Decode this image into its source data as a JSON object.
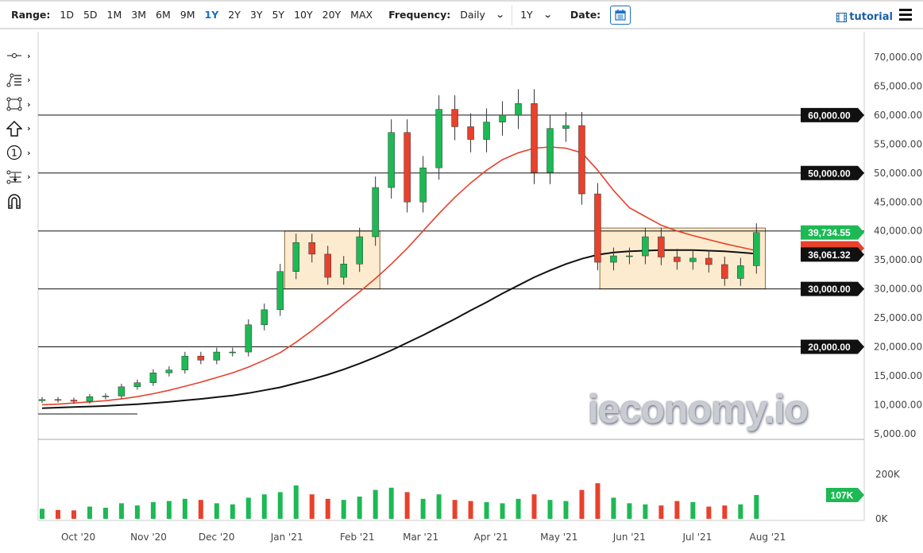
{
  "toolbar": {
    "range_label": "Range:",
    "ranges": [
      "1D",
      "5D",
      "1M",
      "3M",
      "6M",
      "9M",
      "1Y",
      "2Y",
      "3Y",
      "5Y",
      "10Y",
      "20Y",
      "MAX"
    ],
    "active_range": "1Y",
    "frequency_label": "Frequency:",
    "frequency_value": "Daily",
    "period_value": "1Y",
    "date_label": "Date:",
    "tutorial_label": "tutorial"
  },
  "tools": [
    "line-tool-icon",
    "fibonacci-tool-icon",
    "rectangle-tool-icon",
    "arrow-up-tool-icon",
    "numbered-marker-icon",
    "measure-tool-icon",
    "magnet-icon"
  ],
  "watermark": "ieconomy.io",
  "chart_data": {
    "type": "candlestick",
    "frequency": "Daily (approximated weekly)",
    "x": [
      "2020-09-14",
      "2020-09-21",
      "2020-09-28",
      "2020-10-05",
      "2020-10-12",
      "2020-10-19",
      "2020-10-26",
      "2020-11-02",
      "2020-11-09",
      "2020-11-16",
      "2020-11-23",
      "2020-11-30",
      "2020-12-07",
      "2020-12-14",
      "2020-12-21",
      "2020-12-28",
      "2021-01-04",
      "2021-01-11",
      "2021-01-18",
      "2021-01-25",
      "2021-02-01",
      "2021-02-08",
      "2021-02-15",
      "2021-02-22",
      "2021-03-01",
      "2021-03-08",
      "2021-03-15",
      "2021-03-22",
      "2021-03-29",
      "2021-04-05",
      "2021-04-12",
      "2021-04-19",
      "2021-04-26",
      "2021-05-03",
      "2021-05-10",
      "2021-05-17",
      "2021-05-24",
      "2021-05-31",
      "2021-06-07",
      "2021-06-14",
      "2021-06-21",
      "2021-06-28",
      "2021-07-05",
      "2021-07-12",
      "2021-07-19",
      "2021-07-26"
    ],
    "close": [
      10900,
      10800,
      10600,
      11400,
      11500,
      13100,
      13800,
      15500,
      16000,
      18400,
      17700,
      19100,
      19100,
      23800,
      26400,
      33000,
      38000,
      36000,
      32000,
      34300,
      39000,
      47500,
      57000,
      45000,
      50900,
      61000,
      58000,
      55800,
      58800,
      60000,
      62000,
      50100,
      57700,
      58200,
      46400,
      34600,
      35700,
      35700,
      39000,
      35500,
      34700,
      35300,
      34200,
      31800,
      34000,
      39734.55
    ],
    "start_open": 10700,
    "ma50": [
      10000,
      10100,
      10300,
      10500,
      10700,
      11000,
      11400,
      11900,
      12500,
      13200,
      13900,
      14700,
      15500,
      16500,
      17700,
      19000,
      20800,
      22800,
      25000,
      27300,
      29500,
      31800,
      34300,
      37000,
      40000,
      43000,
      45800,
      48300,
      50500,
      52300,
      53500,
      54300,
      54500,
      54300,
      53500,
      50500,
      47000,
      44000,
      42500,
      41000,
      40000,
      39200,
      38500,
      37800,
      37200,
      36600
    ],
    "ma200": [
      9400,
      9500,
      9600,
      9700,
      9800,
      9950,
      10100,
      10300,
      10500,
      10750,
      11000,
      11300,
      11600,
      12000,
      12500,
      13000,
      13700,
      14400,
      15200,
      16100,
      17100,
      18200,
      19400,
      20700,
      22000,
      23400,
      24800,
      26300,
      27700,
      29200,
      30600,
      32000,
      33200,
      34300,
      35200,
      35900,
      36300,
      36500,
      36600,
      36700,
      36700,
      36700,
      36600,
      36500,
      36300,
      36061.32
    ],
    "volume_k": [
      45,
      40,
      38,
      55,
      50,
      70,
      60,
      75,
      80,
      90,
      85,
      70,
      65,
      95,
      110,
      120,
      150,
      110,
      90,
      85,
      100,
      130,
      140,
      120,
      90,
      110,
      85,
      80,
      75,
      70,
      90,
      110,
      85,
      80,
      130,
      160,
      95,
      70,
      65,
      60,
      80,
      75,
      55,
      60,
      65,
      107
    ],
    "y_ticks": [
      "70,000.00",
      "65,000.00",
      "60,000.00",
      "55,000.00",
      "50,000.00",
      "45,000.00",
      "40,000.00",
      "35,000.00",
      "30,000.00",
      "25,000.00",
      "20,000.00",
      "15,000.00",
      "10,000.00",
      "5,000.00"
    ],
    "y_tick_values": [
      70000,
      65000,
      60000,
      55000,
      50000,
      45000,
      40000,
      35000,
      30000,
      25000,
      20000,
      15000,
      10000,
      5000
    ],
    "ylim": [
      5000,
      70000
    ],
    "x_ticks": [
      {
        "label": "Oct '20",
        "date": "2020-10-01"
      },
      {
        "label": "Nov '20",
        "date": "2020-11-01"
      },
      {
        "label": "Dec '20",
        "date": "2020-12-01"
      },
      {
        "label": "Jan '21",
        "date": "2021-01-01"
      },
      {
        "label": "Feb '21",
        "date": "2021-02-01"
      },
      {
        "label": "Mar '21",
        "date": "2021-03-01"
      },
      {
        "label": "Apr '21",
        "date": "2021-04-01"
      },
      {
        "label": "May '21",
        "date": "2021-05-01"
      },
      {
        "label": "Jun '21",
        "date": "2021-06-01"
      },
      {
        "label": "Jul '21",
        "date": "2021-07-01"
      },
      {
        "label": "Aug '21",
        "date": "2021-08-01"
      }
    ],
    "volume_ticks": [
      "200K",
      "0K"
    ],
    "volume_tick_values": [
      200,
      0
    ],
    "volume_last_label": "107K",
    "horizontal_lines": [
      60000,
      50000,
      40000,
      30000,
      20000
    ],
    "horizontal_line_labels": [
      "60,000.00",
      "50,000.00",
      "30,000.00",
      "20,000.00"
    ],
    "horizontal_line_label_values": [
      60000,
      50000,
      30000,
      20000
    ],
    "last_price_label": "39,734.55",
    "ma_label": "36,061.32",
    "rectangles": [
      {
        "from": "2020-12-31",
        "to": "2021-02-11",
        "low": 30000,
        "high": 40000
      },
      {
        "from": "2021-05-19",
        "to": "2021-07-31",
        "low": 30000,
        "high": 40500
      }
    ],
    "colors": {
      "up": "#1db954",
      "down": "#e8412c",
      "ma50": "#e8412c",
      "ma200": "#111111",
      "box_fill": "#fbe7c6",
      "box_stroke": "#8b6a3a",
      "last_badge": "#1db954"
    }
  }
}
